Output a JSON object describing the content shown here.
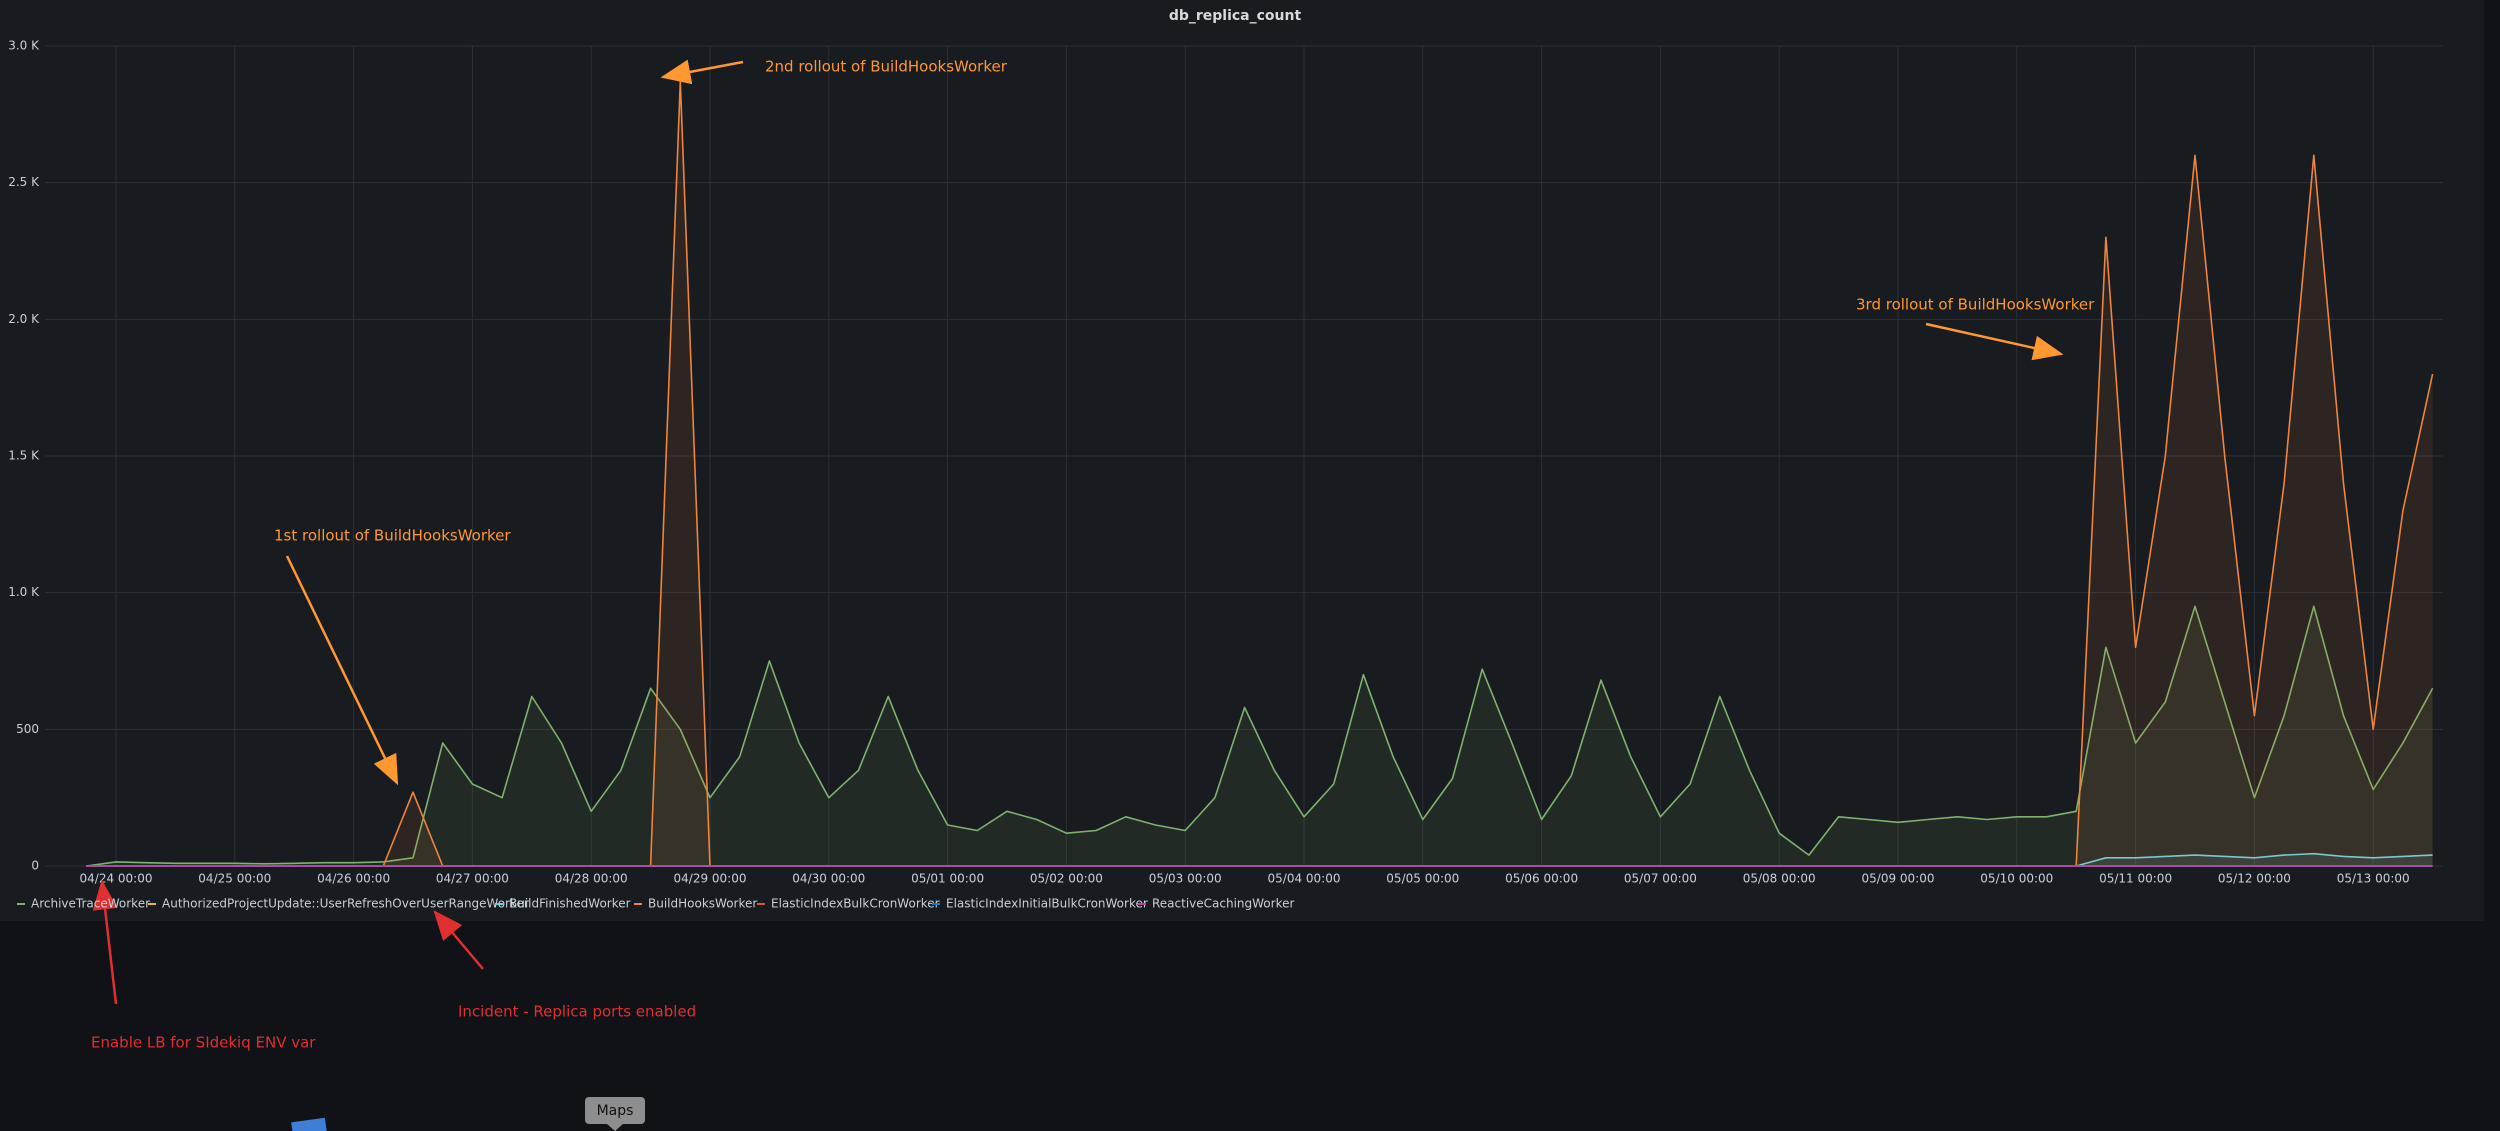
{
  "chart_data": {
    "type": "line",
    "title": "db_replica_count",
    "x": [
      null,
      "04/24 00:00",
      null,
      null,
      null,
      "04/25 00:00",
      null,
      null,
      null,
      "04/26 00:00",
      null,
      null,
      null,
      "04/27 00:00",
      null,
      null,
      null,
      "04/28 00:00",
      null,
      null,
      null,
      "04/29 00:00",
      null,
      null,
      null,
      "04/30 00:00",
      null,
      null,
      null,
      "05/01 00:00",
      null,
      null,
      null,
      "05/02 00:00",
      null,
      null,
      null,
      "05/03 00:00",
      null,
      null,
      null,
      "05/04 00:00",
      null,
      null,
      null,
      "05/05 00:00",
      null,
      null,
      null,
      "05/06 00:00",
      null,
      null,
      null,
      "05/07 00:00",
      null,
      null,
      null,
      "05/08 00:00",
      null,
      null,
      null,
      "05/09 00:00",
      null,
      null,
      null,
      "05/10 00:00",
      null,
      null,
      null,
      "05/11 00:00",
      null,
      null,
      null,
      "05/12 00:00",
      null,
      null,
      null,
      "05/13 00:00",
      null,
      null
    ],
    "ylim": [
      0,
      3000
    ],
    "yticks": [
      0,
      500,
      {
        "value": 1000,
        "label": "1.0 K"
      },
      {
        "value": 1500,
        "label": "1.5 K"
      },
      {
        "value": 2000,
        "label": "2.0 K"
      },
      {
        "value": 2500,
        "label": "2.5 K"
      },
      {
        "value": 3000,
        "label": "3.0 K"
      }
    ],
    "grid": true,
    "legend": "bottom",
    "series": [
      {
        "name": "ArchiveTraceWorker",
        "color": "#7eb26d",
        "values": [
          0,
          15,
          12,
          10,
          10,
          10,
          8,
          10,
          12,
          12,
          15,
          30,
          450,
          300,
          250,
          620,
          450,
          200,
          350,
          650,
          500,
          250,
          400,
          750,
          450,
          250,
          350,
          620,
          350,
          150,
          130,
          200,
          170,
          120,
          130,
          180,
          150,
          130,
          250,
          580,
          350,
          180,
          300,
          700,
          400,
          170,
          320,
          720,
          450,
          170,
          330,
          680,
          400,
          180,
          300,
          620,
          350,
          120,
          40,
          180,
          170,
          160,
          170,
          180,
          170,
          180,
          180,
          200,
          800,
          450,
          600,
          950,
          600,
          250,
          550,
          950,
          550,
          280,
          450,
          650
        ]
      },
      {
        "name": "AuthorizedProjectUpdate::UserRefreshOverUserRangeWorker",
        "color": "#eab839",
        "values": [
          0,
          0,
          0,
          0,
          0,
          0,
          0,
          0,
          0,
          0,
          0,
          0,
          0,
          0,
          0,
          0,
          0,
          0,
          0,
          0,
          0,
          0,
          0,
          0,
          0,
          0,
          0,
          0,
          0,
          0,
          0,
          0,
          0,
          0,
          0,
          0,
          0,
          0,
          0,
          0,
          0,
          0,
          0,
          0,
          0,
          0,
          0,
          0,
          0,
          0,
          0,
          0,
          0,
          0,
          0,
          0,
          0,
          0,
          0,
          0,
          0,
          0,
          0,
          0,
          0,
          0,
          0,
          0,
          0,
          0,
          0,
          0,
          0,
          0,
          0,
          0,
          0,
          0,
          0,
          0
        ]
      },
      {
        "name": "BuildFinishedWorker",
        "color": "#6ed0e0",
        "values": [
          0,
          0,
          0,
          0,
          0,
          0,
          0,
          0,
          0,
          0,
          0,
          0,
          0,
          0,
          0,
          0,
          0,
          0,
          0,
          0,
          0,
          0,
          0,
          0,
          0,
          0,
          0,
          0,
          0,
          0,
          0,
          0,
          0,
          0,
          0,
          0,
          0,
          0,
          0,
          0,
          0,
          0,
          0,
          0,
          0,
          0,
          0,
          0,
          0,
          0,
          0,
          0,
          0,
          0,
          0,
          0,
          0,
          0,
          0,
          0,
          0,
          0,
          0,
          0,
          0,
          0,
          0,
          0,
          30,
          30,
          35,
          40,
          35,
          30,
          40,
          45,
          35,
          30,
          35,
          40
        ]
      },
      {
        "name": "BuildHooksWorker",
        "color": "#ef843c",
        "values": [
          0,
          0,
          0,
          0,
          0,
          0,
          0,
          0,
          0,
          0,
          0,
          270,
          0,
          0,
          0,
          0,
          0,
          0,
          0,
          0,
          2870,
          0,
          0,
          0,
          0,
          0,
          0,
          0,
          0,
          0,
          0,
          0,
          0,
          0,
          0,
          0,
          0,
          0,
          0,
          0,
          0,
          0,
          0,
          0,
          0,
          0,
          0,
          0,
          0,
          0,
          0,
          0,
          0,
          0,
          0,
          0,
          0,
          0,
          0,
          0,
          0,
          0,
          0,
          0,
          0,
          0,
          0,
          0,
          2300,
          800,
          1500,
          2600,
          1500,
          550,
          1400,
          2600,
          1400,
          500,
          1300,
          1800
        ]
      },
      {
        "name": "ElasticIndexBulkCronWorker",
        "color": "#e24d42",
        "values": [
          0,
          0,
          0,
          0,
          0,
          0,
          0,
          0,
          0,
          0,
          0,
          0,
          0,
          0,
          0,
          0,
          0,
          0,
          0,
          0,
          0,
          0,
          0,
          0,
          0,
          0,
          0,
          0,
          0,
          0,
          0,
          0,
          0,
          0,
          0,
          0,
          0,
          0,
          0,
          0,
          0,
          0,
          0,
          0,
          0,
          0,
          0,
          0,
          0,
          0,
          0,
          0,
          0,
          0,
          0,
          0,
          0,
          0,
          0,
          0,
          0,
          0,
          0,
          0,
          0,
          0,
          0,
          0,
          0,
          0,
          0,
          0,
          0,
          0,
          0,
          0,
          0,
          0,
          0,
          0
        ]
      },
      {
        "name": "ElasticIndexInitialBulkCronWorker",
        "color": "#1f78c1",
        "values": [
          0,
          0,
          0,
          0,
          0,
          0,
          0,
          0,
          0,
          0,
          0,
          0,
          0,
          0,
          0,
          0,
          0,
          0,
          0,
          0,
          0,
          0,
          0,
          0,
          0,
          0,
          0,
          0,
          0,
          0,
          0,
          0,
          0,
          0,
          0,
          0,
          0,
          0,
          0,
          0,
          0,
          0,
          0,
          0,
          0,
          0,
          0,
          0,
          0,
          0,
          0,
          0,
          0,
          0,
          0,
          0,
          0,
          0,
          0,
          0,
          0,
          0,
          0,
          0,
          0,
          0,
          0,
          0,
          0,
          0,
          0,
          0,
          0,
          0,
          0,
          0,
          0,
          0,
          0,
          0
        ]
      },
      {
        "name": "ReactiveCachingWorker",
        "color": "#ba43a9",
        "values": [
          0,
          0,
          0,
          0,
          0,
          0,
          0,
          0,
          0,
          0,
          0,
          0,
          0,
          0,
          0,
          0,
          0,
          0,
          0,
          0,
          0,
          0,
          0,
          0,
          0,
          0,
          0,
          0,
          0,
          0,
          0,
          0,
          0,
          0,
          0,
          0,
          0,
          0,
          0,
          0,
          0,
          0,
          0,
          0,
          0,
          0,
          0,
          0,
          0,
          0,
          0,
          0,
          0,
          0,
          0,
          0,
          0,
          0,
          0,
          0,
          0,
          0,
          0,
          0,
          0,
          0,
          0,
          0,
          0,
          0,
          0,
          0,
          0,
          0,
          0,
          0,
          0,
          0,
          0,
          0
        ]
      }
    ],
    "annotations": [
      {
        "text": "1st rollout of BuildHooksWorker",
        "color": "#ff9830"
      },
      {
        "text": "2nd rollout of BuildHooksWorker",
        "color": "#ff9830"
      },
      {
        "text": "3rd rollout of BuildHooksWorker",
        "color": "#ff9830"
      },
      {
        "text": "Enable LB for SIdekiq ENV var",
        "color": "#e02f2f"
      },
      {
        "text": "Incident - Replica ports enabled",
        "color": "#e02f2f"
      }
    ]
  },
  "tooltip": "Maps"
}
